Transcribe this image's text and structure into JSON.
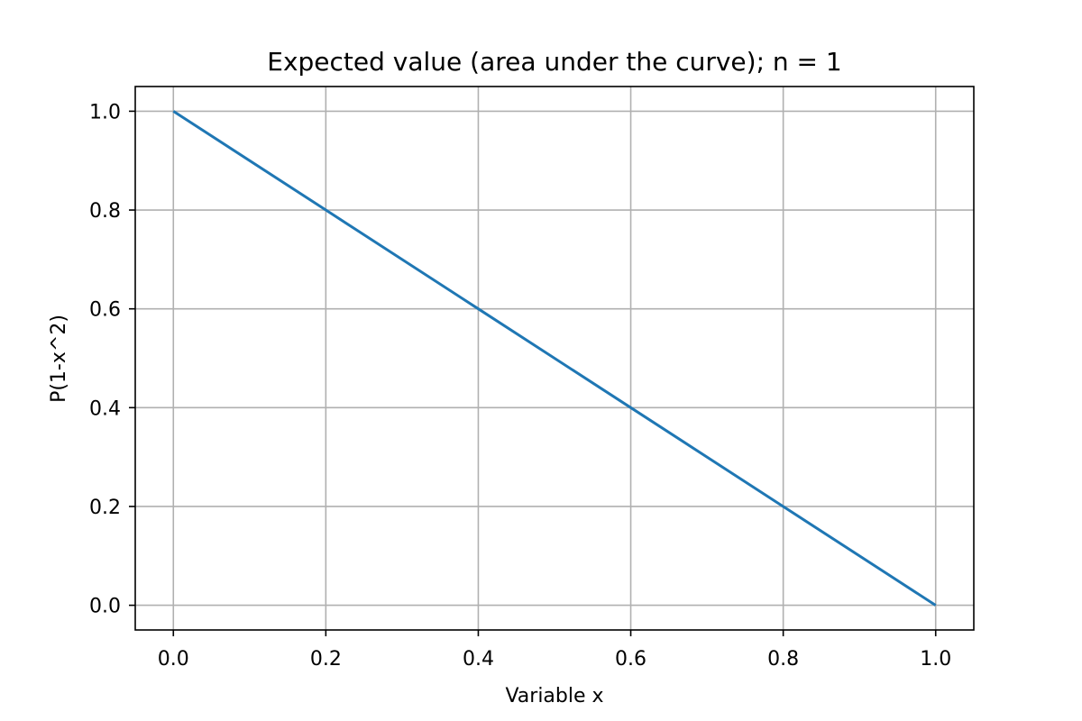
{
  "chart_data": {
    "type": "line",
    "title": "Expected value (area under the curve); n = 1",
    "xlabel": "Variable x",
    "ylabel": "P(1-x^2)",
    "xlim": [
      -0.05,
      1.05
    ],
    "ylim": [
      -0.05,
      1.05
    ],
    "xticks": [
      0.0,
      0.2,
      0.4,
      0.6,
      0.8,
      1.0
    ],
    "yticks": [
      0.0,
      0.2,
      0.4,
      0.6,
      0.8,
      1.0
    ],
    "xtick_labels": [
      "0.0",
      "0.2",
      "0.4",
      "0.6",
      "0.8",
      "1.0"
    ],
    "ytick_labels": [
      "0.0",
      "0.2",
      "0.4",
      "0.6",
      "0.8",
      "1.0"
    ],
    "grid": true,
    "series": [
      {
        "x": [
          0.0,
          0.2,
          0.4,
          0.6,
          0.8,
          1.0
        ],
        "y": [
          1.0,
          0.8,
          0.6,
          0.4,
          0.2,
          0.0
        ],
        "color": "#1f77b4"
      }
    ],
    "colors": {
      "grid": "#b0b0b0",
      "axes": "#000000",
      "line": "#1f77b4"
    }
  }
}
